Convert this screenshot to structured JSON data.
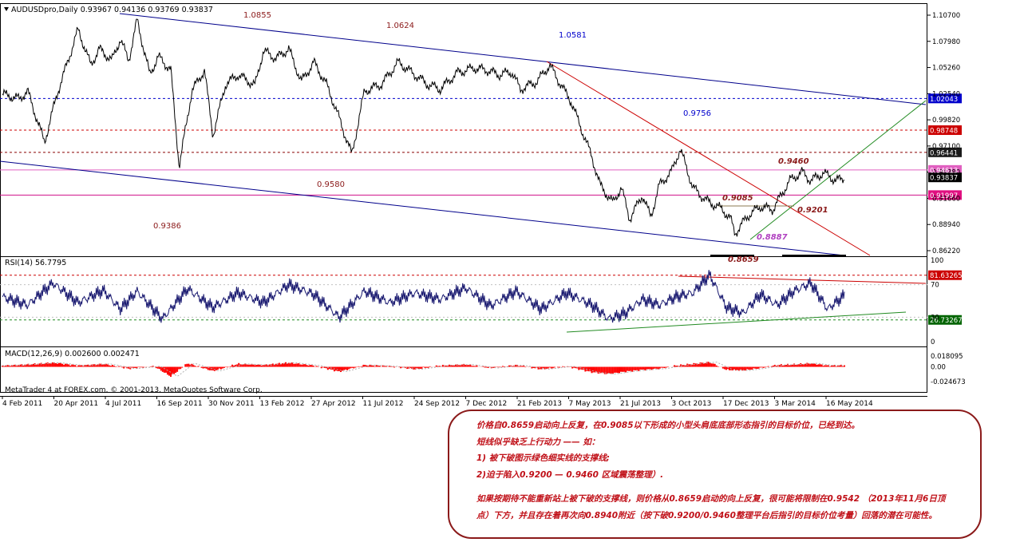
{
  "chart_data": [
    {
      "type": "line",
      "panel": "price",
      "symbol_header": "AUDUSDpro,Daily",
      "ohlc_header": "0.93967 0.94136 0.93769 0.93837",
      "y_ticks": [
        "1.10700",
        "1.07980",
        "1.05260",
        "1.02540",
        "0.99820",
        "0.97100",
        "0.94380",
        "0.91660",
        "0.88940",
        "0.86220"
      ],
      "ylim": [
        0.8622,
        1.107
      ],
      "price_tags": [
        {
          "label": "1.02043",
          "value": 1.02043,
          "bg": "#0000cc",
          "line": "#0000cc",
          "dash": "3,3"
        },
        {
          "label": "0.98748",
          "value": 0.98748,
          "bg": "#cc0000",
          "line": "#cc0000",
          "dash": "3,3"
        },
        {
          "label": "0.96441",
          "value": 0.96441,
          "bg": "#1a1a1a",
          "line": "#8b0000",
          "dash": "3,3"
        },
        {
          "label": "0.94613",
          "value": 0.94613,
          "bg": "#e060c0",
          "line": "#e060c0",
          "dash": ""
        },
        {
          "label": "0.93837",
          "value": 0.93837,
          "bg": "#000000",
          "line": "",
          "dash": ""
        },
        {
          "label": "0.91997",
          "value": 0.91997,
          "bg": "#e01080",
          "line": "#d0108a",
          "dash": ""
        }
      ],
      "annotations": [
        {
          "text": "1.0855",
          "color": "#8b1a1a"
        },
        {
          "text": "1.0624",
          "color": "#8b1a1a"
        },
        {
          "text": "1.0581",
          "color": "#0000cc"
        },
        {
          "text": "0.9756",
          "color": "#0000cc"
        },
        {
          "text": "0.9580",
          "color": "#8b1a1a"
        },
        {
          "text": "0.9386",
          "color": "#8b1a1a"
        },
        {
          "text": "0.9460",
          "color": "#8b1a1a"
        },
        {
          "text": "0.9085",
          "color": "#8b1a1a"
        },
        {
          "text": "0.9201",
          "color": "#8b1a1a"
        },
        {
          "text": "0.8887",
          "color": "#b040c0"
        },
        {
          "text": "0.8659",
          "color": "#8b1a1a"
        }
      ],
      "series": [
        {
          "x": [
            0,
            0.02,
            0.03,
            0.05,
            0.065,
            0.09,
            0.105,
            0.115,
            0.13,
            0.14,
            0.15,
            0.16,
            0.175,
            0.185,
            0.2,
            0.21,
            0.225,
            0.24,
            0.25,
            0.265,
            0.28,
            0.3,
            0.31,
            0.325,
            0.34,
            0.355,
            0.37,
            0.385,
            0.4,
            0.415,
            0.43,
            0.45,
            0.47,
            0.49,
            0.505,
            0.52,
            0.54,
            0.56,
            0.575,
            0.59,
            0.605,
            0.615,
            0.635,
            0.65,
            0.665,
            0.675,
            0.7,
            0.71,
            0.725,
            0.735,
            0.745,
            0.76,
            0.77,
            0.78,
            0.795,
            0.805,
            0.82,
            0.835,
            0.855,
            0.865,
            0.87,
            0.885,
            0.9,
            0.915,
            0.935,
            0.95,
            0.96,
            0.975,
            0.99,
            1.0
          ],
          "values": [
            1.025,
            1.02,
            1.028,
            0.975,
            1.025,
            1.092,
            1.055,
            1.072,
            1.06,
            1.082,
            1.06,
            1.102,
            1.045,
            1.064,
            1.05,
            0.95,
            1.028,
            1.05,
            0.982,
            1.035,
            1.045,
            1.034,
            1.07,
            1.062,
            1.072,
            1.038,
            1.058,
            1.035,
            1.0,
            0.962,
            1.028,
            1.035,
            1.058,
            1.045,
            1.035,
            1.03,
            1.047,
            1.052,
            1.05,
            1.045,
            1.048,
            1.03,
            1.038,
            1.055,
            1.032,
            1.018,
            0.96,
            0.93,
            0.912,
            0.928,
            0.895,
            0.92,
            0.897,
            0.93,
            0.945,
            0.968,
            0.928,
            0.915,
            0.905,
            0.895,
            0.88,
            0.898,
            0.908,
            0.905,
            0.935,
            0.944,
            0.935,
            0.943,
            0.935,
            0.938
          ]
        }
      ]
    },
    {
      "type": "line",
      "panel": "rsi",
      "header": "RSI(14) 56.7795",
      "y_ticks": [
        "100",
        "70",
        "30",
        "0"
      ],
      "ylim": [
        0,
        100
      ],
      "levels": [
        {
          "label": "81.63265",
          "value": 81.63,
          "bg": "#cc0000",
          "line": "#cc0000"
        },
        {
          "label": "26.73267",
          "value": 26.73,
          "bg": "#006400",
          "line": "#228b22"
        }
      ],
      "series": [
        {
          "x": [
            0,
            0.03,
            0.06,
            0.09,
            0.12,
            0.14,
            0.16,
            0.19,
            0.22,
            0.25,
            0.28,
            0.31,
            0.34,
            0.37,
            0.4,
            0.43,
            0.46,
            0.49,
            0.52,
            0.55,
            0.58,
            0.61,
            0.64,
            0.67,
            0.7,
            0.72,
            0.74,
            0.76,
            0.78,
            0.8,
            0.82,
            0.84,
            0.86,
            0.88,
            0.9,
            0.92,
            0.94,
            0.96,
            0.98,
            1.0
          ],
          "values": [
            55,
            45,
            72,
            48,
            63,
            40,
            62,
            28,
            65,
            42,
            60,
            48,
            70,
            58,
            30,
            62,
            48,
            60,
            52,
            66,
            44,
            62,
            40,
            60,
            45,
            28,
            35,
            52,
            45,
            55,
            60,
            82,
            42,
            35,
            58,
            45,
            62,
            72,
            40,
            57
          ]
        }
      ]
    },
    {
      "type": "bar",
      "panel": "macd",
      "header": "MACD(12,26,9) 0.002600 0.002471",
      "watermark": "MetaTrader 4 at FOREX.com, © 2001-2013, MetaQuotes Software Corp.",
      "y_ticks": [
        "0.018095",
        "0.00",
        "-0.024673"
      ],
      "ylim": [
        -0.024673,
        0.018095
      ],
      "series": [
        {
          "x": [
            0,
            0.03,
            0.06,
            0.09,
            0.12,
            0.15,
            0.18,
            0.2,
            0.22,
            0.25,
            0.28,
            0.31,
            0.34,
            0.37,
            0.4,
            0.43,
            0.46,
            0.49,
            0.52,
            0.55,
            0.58,
            0.61,
            0.64,
            0.67,
            0.7,
            0.72,
            0.74,
            0.76,
            0.78,
            0.8,
            0.82,
            0.84,
            0.86,
            0.88,
            0.9,
            0.92,
            0.94,
            0.96,
            0.98,
            1.0
          ],
          "values": [
            0.002,
            0.004,
            0.007,
            0.002,
            0.005,
            -0.003,
            0.001,
            -0.016,
            0.006,
            -0.007,
            0.005,
            0.003,
            0.007,
            0.002,
            -0.008,
            0.003,
            0.001,
            -0.004,
            0.002,
            0.004,
            -0.002,
            0.003,
            -0.004,
            0.001,
            -0.009,
            -0.012,
            -0.008,
            -0.005,
            -0.003,
            0.002,
            0.005,
            0.008,
            -0.005,
            -0.006,
            -0.002,
            0.003,
            0.004,
            0.006,
            0.002,
            0.0026
          ]
        }
      ]
    }
  ],
  "x_axis_labels": [
    "4 Feb 2011",
    "20 Apr 2011",
    "4 Jul 2011",
    "16 Sep 2011",
    "30 Nov 2011",
    "13 Feb 2012",
    "27 Apr 2012",
    "11 Jul 2012",
    "24 Sep 2012",
    "7 Dec 2012",
    "21 Feb 2013",
    "7 May 2013",
    "21 Jul 2013",
    "3 Oct 2013",
    "17 Dec 2013",
    "3 Mar 2014",
    "16 May 2014"
  ],
  "colors": {
    "price": "#000000",
    "rsi": "#191970",
    "macd_bar": "#ff0000",
    "macd_signal": "#b0b0b0",
    "channel": "#00008b",
    "down_trend": "#cc0000",
    "up_trend": "#228b22"
  },
  "note": {
    "lines": [
      "价格自0.8659启动向上反复，在0.9085以下形成的小型头肩底底部形态指引的目标价位，已经到达。",
      "短线似乎缺乏上行动力 —— 如：",
      "1) 被下破图示绿色细实线的支撑线;",
      "2)迫于陷入0.9200 — 0.9460 区域震荡整理）.",
      "",
      "如果按期待不能重新站上被下破的支撑线，则价格从0.8659启动的向上反复，很可能将限制在0.9542 （2013年11月6日顶",
      "点）下方，并且存在着再次向0.8940附近（按下破0.9200/0.9460整理平台后指引的目标价位考量）回落的潜在可能性。"
    ]
  }
}
